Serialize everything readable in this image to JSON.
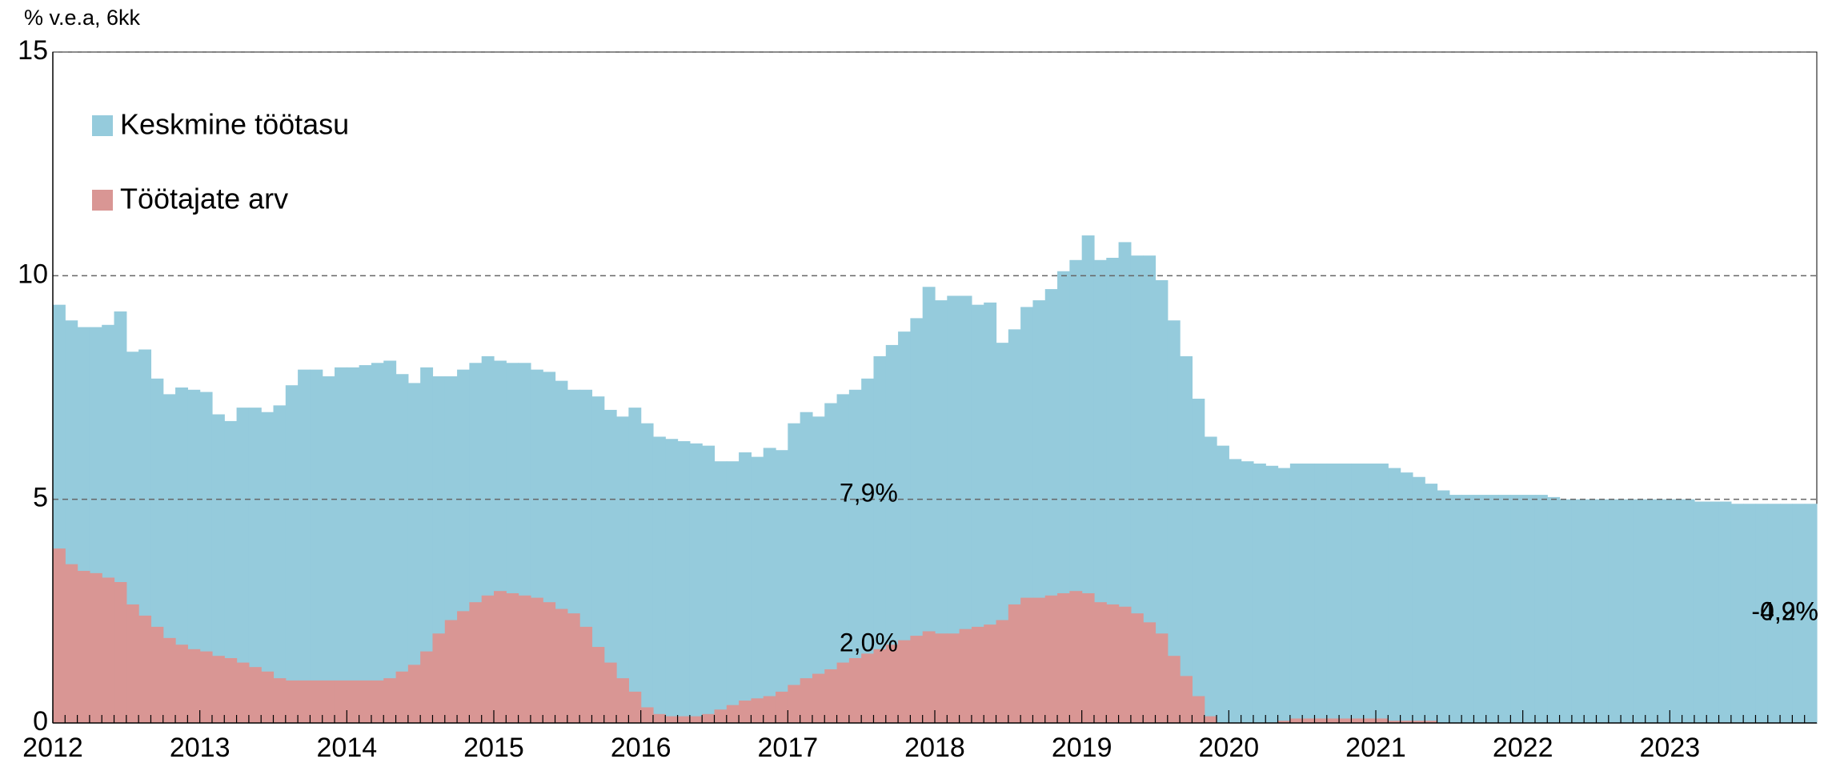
{
  "chart_data": {
    "type": "bar",
    "axis_label": "% v.e.a, 6kk",
    "categories": [
      "2012",
      null,
      null,
      null,
      null,
      null,
      null,
      null,
      null,
      null,
      null,
      null,
      "2013",
      null,
      null,
      null,
      null,
      null,
      null,
      null,
      null,
      null,
      null,
      null,
      "2014",
      null,
      null,
      null,
      null,
      null,
      null,
      null,
      null,
      null,
      null,
      null,
      "2015",
      null,
      null,
      null,
      null,
      null,
      null,
      null,
      null,
      null,
      null,
      null,
      "2016",
      null,
      null,
      null,
      null,
      null,
      null,
      null,
      null,
      null,
      null,
      null,
      "2017",
      null,
      null,
      null,
      null,
      null,
      null,
      null,
      null,
      null,
      null,
      null,
      "2018",
      null,
      null,
      null,
      null,
      null,
      null,
      null,
      null,
      null,
      null,
      null,
      "2019",
      null,
      null,
      null,
      null,
      null,
      null,
      null,
      null,
      null,
      null,
      null,
      "2020",
      null,
      null,
      null,
      null,
      null,
      null,
      null,
      null,
      null,
      null,
      null,
      "2021",
      null,
      null,
      null,
      null,
      null,
      null,
      null,
      null,
      null,
      null,
      null,
      "2022",
      null,
      null,
      null,
      null,
      null,
      null,
      null,
      null,
      null,
      null,
      null,
      "2023",
      null,
      null,
      null,
      null,
      null,
      null,
      null,
      null,
      null,
      null,
      null
    ],
    "series": [
      {
        "name": "Keskmine töötasu",
        "color": "#95cbdc",
        "values": [
          9.35,
          9.0,
          8.85,
          8.85,
          8.9,
          9.2,
          8.3,
          8.35,
          7.7,
          7.35,
          7.5,
          7.45,
          7.4,
          6.9,
          6.75,
          7.05,
          7.05,
          6.95,
          7.1,
          7.55,
          7.9,
          7.9,
          7.75,
          7.95,
          7.95,
          8.0,
          8.05,
          8.1,
          7.8,
          7.6,
          7.95,
          7.75,
          7.75,
          7.9,
          8.05,
          8.2,
          8.1,
          8.05,
          8.05,
          7.9,
          7.85,
          7.65,
          7.45,
          7.45,
          7.3,
          7.0,
          6.85,
          7.05,
          6.7,
          6.4,
          6.35,
          6.3,
          6.25,
          6.2,
          5.85,
          5.85,
          6.05,
          5.95,
          6.15,
          6.1,
          6.7,
          6.95,
          6.85,
          7.15,
          7.35,
          7.45,
          7.7,
          8.2,
          8.45,
          8.75,
          9.05,
          9.75,
          9.45,
          9.55,
          9.55,
          9.35,
          9.4,
          8.5,
          8.8,
          9.3,
          9.45,
          9.7,
          10.1,
          10.35,
          10.9,
          10.35,
          10.4,
          10.75,
          10.45,
          10.45,
          9.9,
          9.0,
          8.2,
          7.25,
          6.4,
          6.2,
          5.9,
          5.85,
          5.8,
          5.75,
          5.7,
          5.8,
          5.8,
          5.8,
          5.8,
          5.8,
          5.8,
          5.8,
          5.8,
          5.7,
          5.6,
          5.5,
          5.35,
          5.2,
          5.1,
          5.1,
          5.1,
          5.1,
          5.1,
          5.1,
          5.1,
          5.1,
          5.05,
          5.0,
          5.0,
          5.0,
          5.0,
          5.0,
          5.0,
          5.0,
          5.0,
          5.0,
          5.0,
          5.0,
          4.95,
          4.95,
          4.95,
          4.9,
          4.9,
          4.9,
          4.9,
          4.9,
          4.9,
          4.9
        ]
      },
      {
        "name": "Töötajate arv",
        "color": "#d99694",
        "values": [
          3.9,
          3.55,
          3.4,
          3.35,
          3.25,
          3.15,
          2.65,
          2.4,
          2.15,
          1.9,
          1.75,
          1.65,
          1.6,
          1.5,
          1.45,
          1.35,
          1.25,
          1.15,
          1.0,
          0.95,
          0.95,
          0.95,
          0.95,
          0.95,
          0.95,
          0.95,
          0.95,
          1.0,
          1.15,
          1.3,
          1.6,
          2.0,
          2.3,
          2.5,
          2.7,
          2.85,
          2.95,
          2.9,
          2.85,
          2.8,
          2.7,
          2.55,
          2.45,
          2.15,
          1.7,
          1.35,
          1.0,
          0.7,
          0.35,
          0.2,
          0.15,
          0.15,
          0.15,
          0.2,
          0.3,
          0.4,
          0.5,
          0.55,
          0.6,
          0.7,
          0.85,
          1.0,
          1.1,
          1.2,
          1.35,
          1.45,
          1.55,
          1.65,
          1.75,
          1.85,
          1.95,
          2.05,
          2.0,
          2.0,
          2.1,
          2.15,
          2.2,
          2.3,
          2.65,
          2.8,
          2.8,
          2.85,
          2.9,
          2.95,
          2.9,
          2.7,
          2.65,
          2.6,
          2.45,
          2.25,
          2.0,
          1.5,
          1.05,
          0.6,
          0.15,
          0,
          0,
          0,
          0,
          0,
          0.05,
          0.1,
          0.1,
          0.1,
          0.1,
          0.1,
          0.1,
          0.1,
          0.1,
          0.05,
          0.05,
          0.05,
          0.05,
          0,
          0,
          0,
          0,
          0,
          0,
          0,
          0,
          0,
          0,
          0,
          0,
          0,
          0,
          0,
          0,
          0,
          0,
          0,
          0,
          0,
          0,
          0,
          0,
          0,
          0,
          0,
          0,
          0,
          0,
          0
        ]
      }
    ],
    "annotations": [
      "7,9%",
      "2,0%",
      "4,9%",
      "-0,2%"
    ],
    "ylim": [
      0,
      15
    ],
    "yticks": [
      0,
      5,
      10,
      15
    ],
    "grid": true,
    "legend": "upper left"
  }
}
